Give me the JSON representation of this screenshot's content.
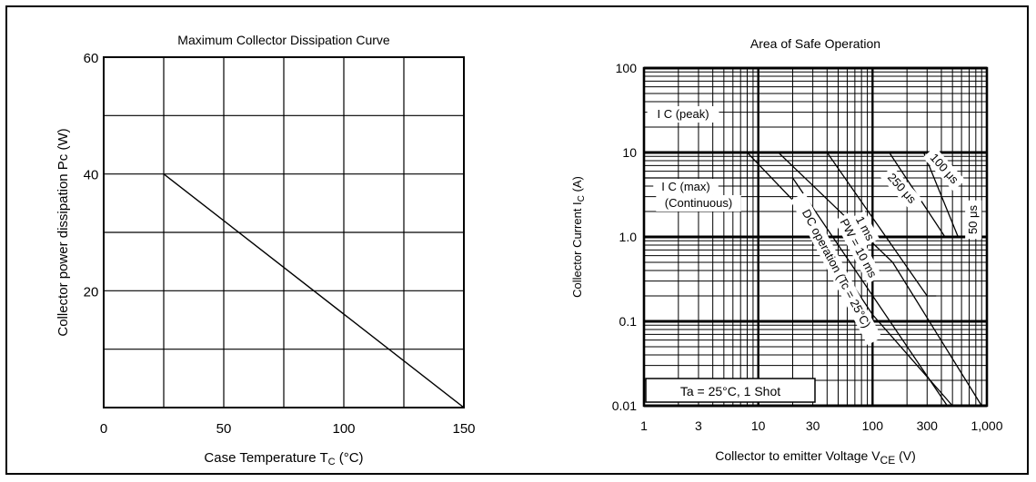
{
  "chart_data": [
    {
      "type": "line",
      "title": "Maximum Collector Dissipation Curve",
      "xlabel": "Case Temperature  T",
      "xlabel_sub": "C",
      "xlabel_unit": "(°C)",
      "ylabel": "Collector power dissipation  Pc  (W)",
      "xlim": [
        0,
        150
      ],
      "ylim": [
        0,
        60
      ],
      "xticks": [
        0,
        50,
        100,
        150
      ],
      "yticks": [
        20,
        40,
        60
      ],
      "grid": true,
      "series": [
        {
          "x": [
            25,
            150
          ],
          "y": [
            40,
            0
          ]
        }
      ]
    },
    {
      "type": "line",
      "title": "Area of Safe Operation",
      "xlabel": "Collector to emitter Voltage  V",
      "xlabel_sub": "CE",
      "xlabel_unit": "(V)",
      "ylabel": "Collector Current  I",
      "ylabel_sub": "C",
      "ylabel_unit": "(A)",
      "xscale": "log",
      "yscale": "log",
      "xlim": [
        1,
        1000
      ],
      "ylim": [
        0.01,
        100
      ],
      "xticks": [
        "1",
        "3",
        "10",
        "30",
        "100",
        "300",
        "1,000"
      ],
      "yticks": [
        "0.01",
        "0.1",
        "1.0",
        "10",
        "100"
      ],
      "grid": true,
      "annotations": [
        "I",
        "C (peak)",
        "I",
        "C (max)",
        "(Continuous)",
        "DC operation (Tc = 25°C)",
        "1 ms",
        "PW = 10 ms",
        "250 μs",
        "100 μs",
        "50 μs",
        "Ta = 25°C, 1 Shot"
      ],
      "series": [
        {
          "x": [
            1,
            20,
            450,
            1000
          ],
          "y": [
            5,
            5,
            0.01,
            0.01
          ]
        },
        {
          "x": [
            1,
            8,
            25,
            100,
            500,
            1000
          ],
          "y": [
            10,
            10,
            2,
            0.12,
            0.01,
            0.01
          ]
        },
        {
          "x": [
            1,
            15,
            40,
            150,
            900
          ],
          "y": [
            10,
            10,
            2.8,
            0.5,
            0.01
          ]
        },
        {
          "x": [
            1,
            40,
            300,
            360
          ],
          "y": [
            10,
            10,
            0.2,
            0.2
          ]
        },
        {
          "x": [
            1,
            140,
            430
          ],
          "y": [
            10,
            10,
            1.0
          ]
        },
        {
          "x": [
            1,
            280,
            560
          ],
          "y": [
            10,
            10,
            1.0
          ]
        }
      ]
    }
  ]
}
